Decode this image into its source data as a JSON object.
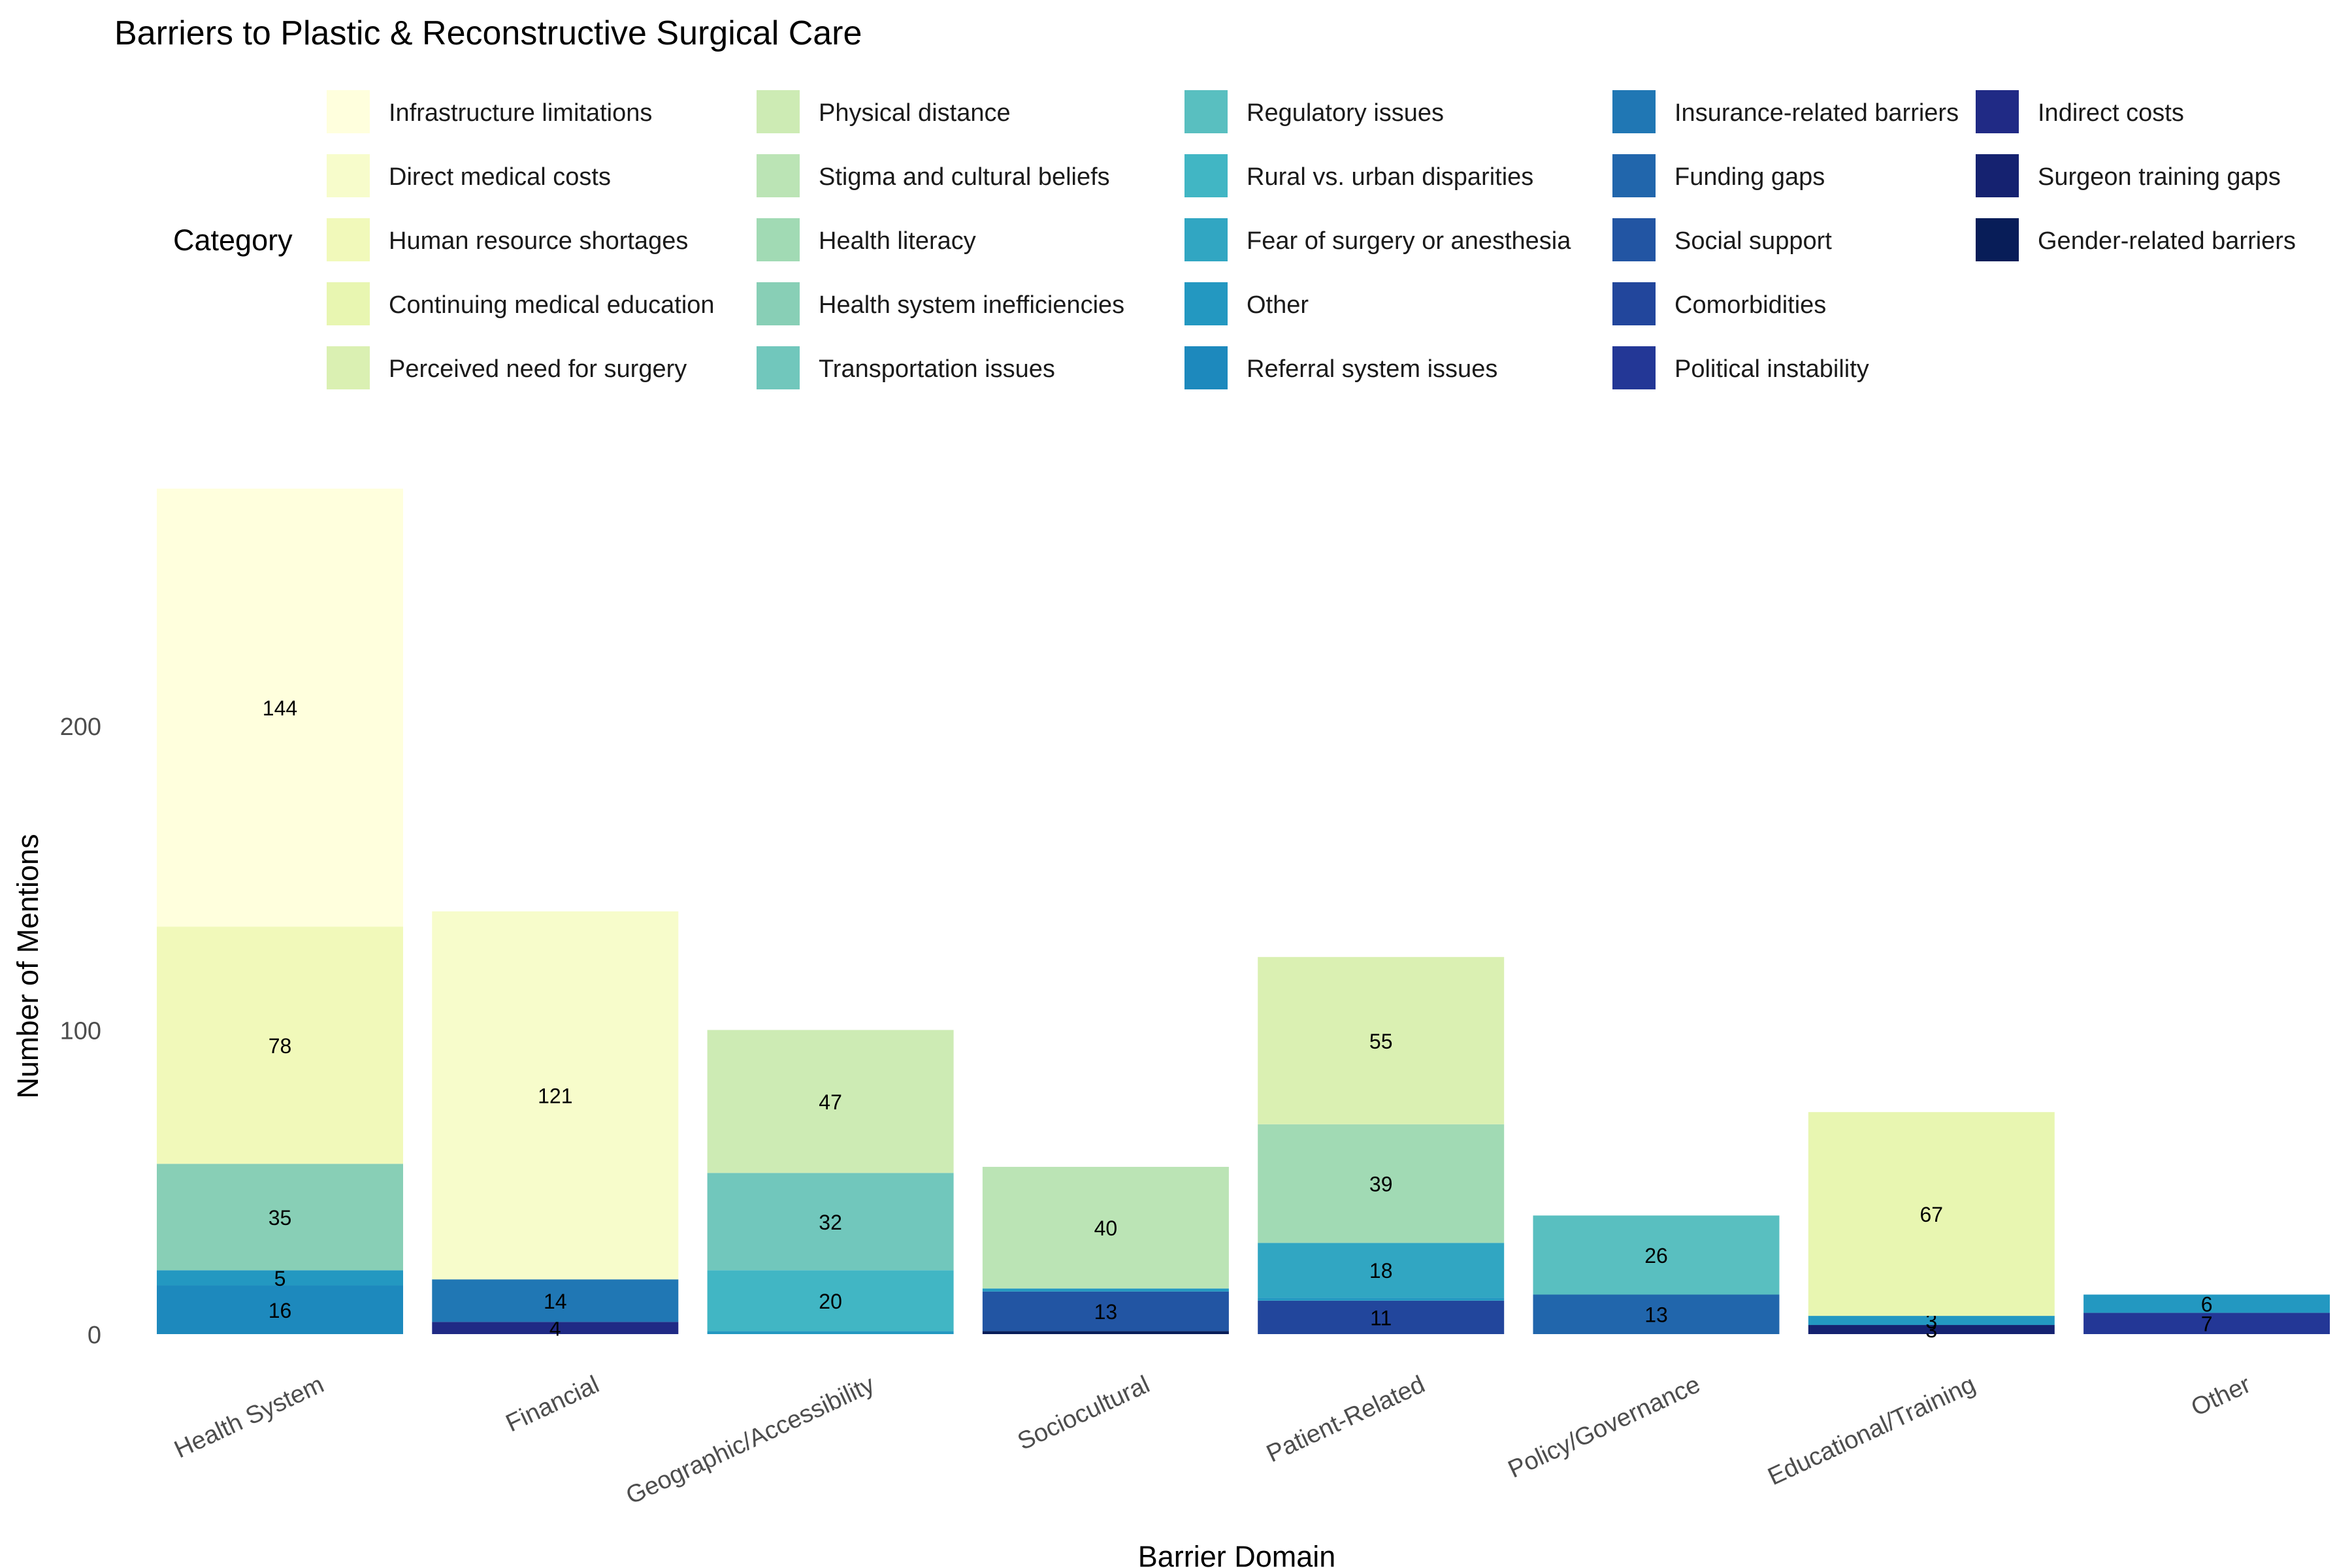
{
  "chart_data": {
    "type": "bar",
    "stacked": true,
    "title": "Barriers to Plastic & Reconstructive Surgical Care",
    "xlabel": "Barrier Domain",
    "ylabel": "Number of Mentions",
    "legend_title": "Category",
    "legend_position": "top",
    "grid": false,
    "ylim": [
      0,
      280
    ],
    "yticks": [
      0,
      100,
      200
    ],
    "categories": [
      "Health System",
      "Financial",
      "Geographic/Accessibility",
      "Sociocultural",
      "Patient-Related",
      "Policy/Governance",
      "Educational/Training",
      "Other"
    ],
    "legend": [
      {
        "name": "Infrastructure limitations",
        "color": "#FFFFDD"
      },
      {
        "name": "Direct medical costs",
        "color": "#F7FCCB"
      },
      {
        "name": "Human resource shortages",
        "color": "#F1F9BA"
      },
      {
        "name": "Continuing medical education",
        "color": "#E8F6B1"
      },
      {
        "name": "Perceived need for surgery",
        "color": "#DAF0B2"
      },
      {
        "name": "Physical distance",
        "color": "#CDEBB4"
      },
      {
        "name": "Stigma and cultural beliefs",
        "color": "#BBE4B5"
      },
      {
        "name": "Health literacy",
        "color": "#A1DAB4"
      },
      {
        "name": "Health system inefficiencies",
        "color": "#88CFB6"
      },
      {
        "name": "Transportation issues",
        "color": "#71C7BC"
      },
      {
        "name": "Regulatory issues",
        "color": "#59BFC0"
      },
      {
        "name": "Rural vs. urban disparities",
        "color": "#41B6C4"
      },
      {
        "name": "Fear of surgery or anesthesia",
        "color": "#31A6C2"
      },
      {
        "name": "Other",
        "color": "#2398C1"
      },
      {
        "name": "Referral system issues",
        "color": "#1D89BD"
      },
      {
        "name": "Insurance-related barriers",
        "color": "#2077B4"
      },
      {
        "name": "Funding gaps",
        "color": "#2166AC"
      },
      {
        "name": "Social support",
        "color": "#2255A3"
      },
      {
        "name": "Comorbidities",
        "color": "#22469C"
      },
      {
        "name": "Political instability",
        "color": "#233796"
      },
      {
        "name": "Indirect costs",
        "color": "#202A85"
      },
      {
        "name": "Surgeon training gaps",
        "color": "#152270"
      },
      {
        "name": "Gender-related barriers",
        "color": "#081D58"
      }
    ],
    "stacks": [
      {
        "category": "Health System",
        "segments": [
          {
            "series": "Referral system issues",
            "value": 16
          },
          {
            "series": "Other",
            "value": 5
          },
          {
            "series": "Health system inefficiencies",
            "value": 35
          },
          {
            "series": "Human resource shortages",
            "value": 78
          },
          {
            "series": "Infrastructure limitations",
            "value": 144
          }
        ]
      },
      {
        "category": "Financial",
        "segments": [
          {
            "series": "Indirect costs",
            "value": 4
          },
          {
            "series": "Insurance-related barriers",
            "value": 14
          },
          {
            "series": "Direct medical costs",
            "value": 121
          }
        ]
      },
      {
        "category": "Geographic/Accessibility",
        "segments": [
          {
            "series": "Other",
            "value": 1
          },
          {
            "series": "Rural vs. urban disparities",
            "value": 20
          },
          {
            "series": "Transportation issues",
            "value": 32
          },
          {
            "series": "Physical distance",
            "value": 47
          }
        ]
      },
      {
        "category": "Sociocultural",
        "segments": [
          {
            "series": "Gender-related barriers",
            "value": 1
          },
          {
            "series": "Social support",
            "value": 13
          },
          {
            "series": "Other",
            "value": 1
          },
          {
            "series": "Stigma and cultural beliefs",
            "value": 40
          }
        ]
      },
      {
        "category": "Patient-Related",
        "segments": [
          {
            "series": "Comorbidities",
            "value": 11
          },
          {
            "series": "Other",
            "value": 1
          },
          {
            "series": "Fear of surgery or anesthesia",
            "value": 18
          },
          {
            "series": "Health literacy",
            "value": 39
          },
          {
            "series": "Perceived need for surgery",
            "value": 55
          }
        ]
      },
      {
        "category": "Policy/Governance",
        "segments": [
          {
            "series": "Funding gaps",
            "value": 13
          },
          {
            "series": "Regulatory issues",
            "value": 26
          }
        ]
      },
      {
        "category": "Educational/Training",
        "segments": [
          {
            "series": "Surgeon training gaps",
            "value": 3
          },
          {
            "series": "Other",
            "value": 3
          },
          {
            "series": "Continuing medical education",
            "value": 67
          }
        ]
      },
      {
        "category": "Other",
        "segments": [
          {
            "series": "Political instability",
            "value": 7
          },
          {
            "series": "Other",
            "value": 6
          }
        ]
      }
    ],
    "label_min_value": 2
  }
}
